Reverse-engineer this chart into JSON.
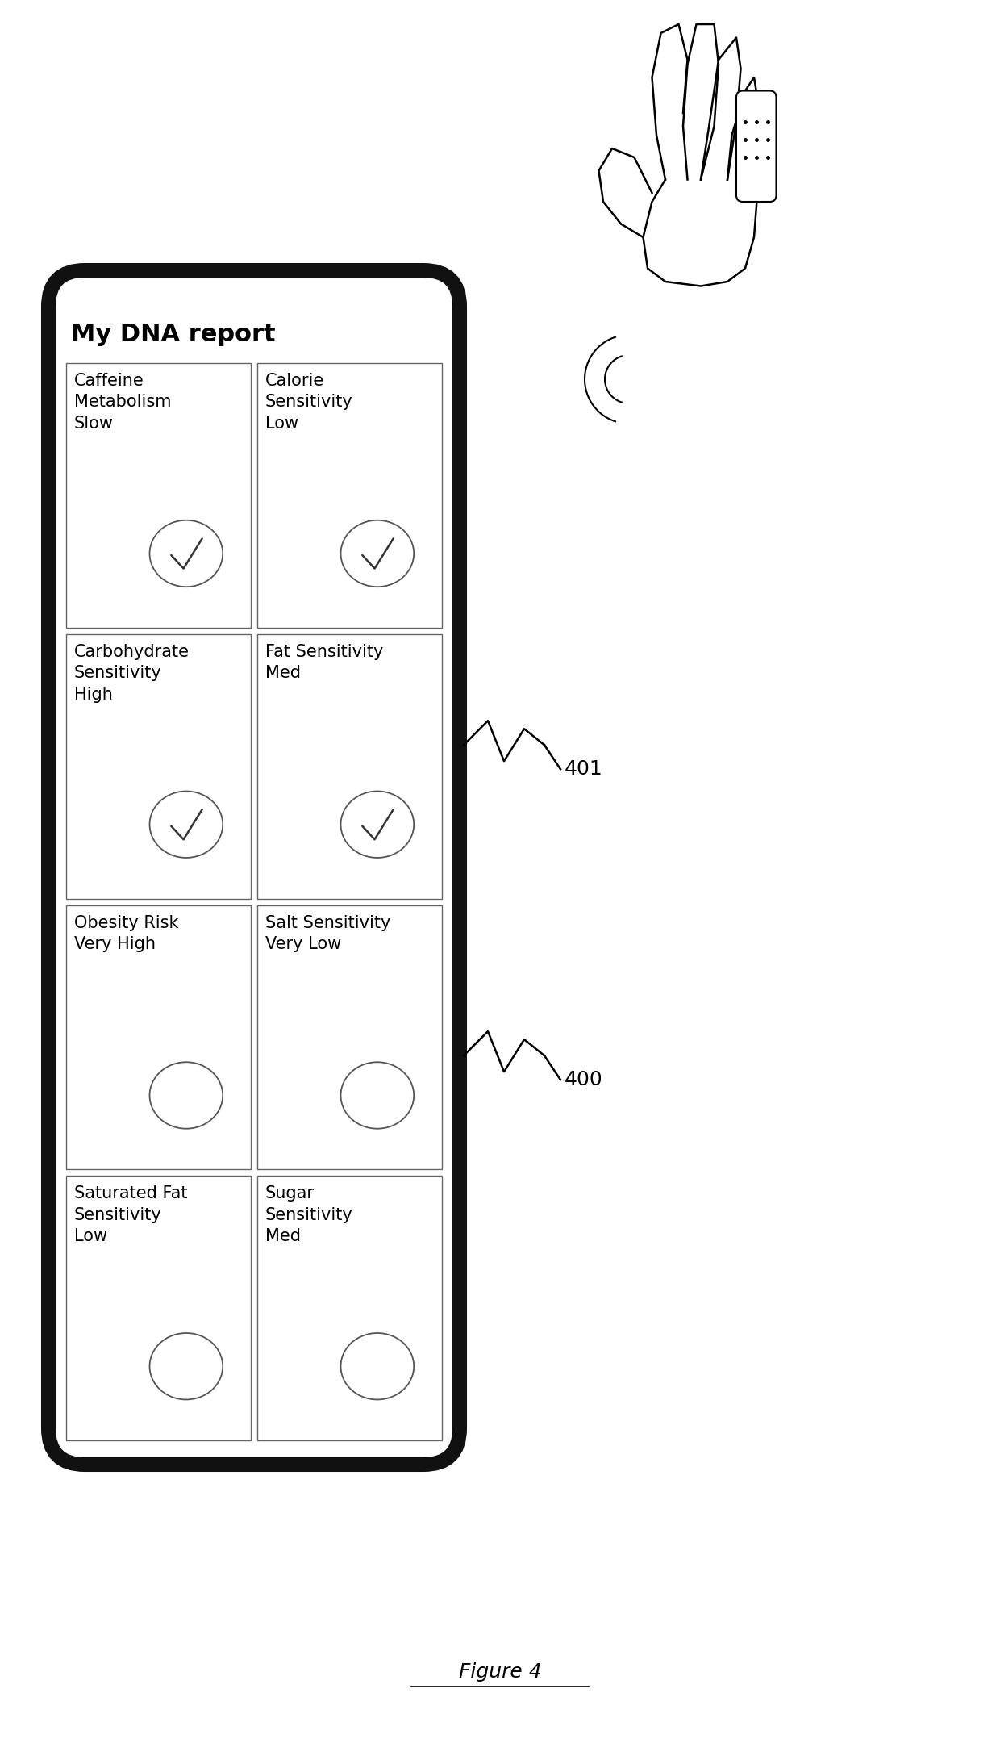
{
  "title": "My DNA report",
  "figure_label": "Figure 4",
  "ref_401": "401",
  "ref_400": "400",
  "bg_color": "#ffffff",
  "phone_bg": "#ffffff",
  "phone_border": "#111111",
  "cells": [
    {
      "row": 0,
      "col": 0,
      "label": "Caffeine\nMetabolism\nSlow",
      "checked": true
    },
    {
      "row": 0,
      "col": 1,
      "label": "Calorie\nSensitivity\nLow",
      "checked": true
    },
    {
      "row": 1,
      "col": 0,
      "label": "Carbohydrate\nSensitivity\nHigh",
      "checked": true
    },
    {
      "row": 1,
      "col": 1,
      "label": "Fat Sensitivity\nMed",
      "checked": true
    },
    {
      "row": 2,
      "col": 0,
      "label": "Obesity Risk\nVery High",
      "checked": false
    },
    {
      "row": 2,
      "col": 1,
      "label": "Salt Sensitivity\nVery Low",
      "checked": false
    },
    {
      "row": 3,
      "col": 0,
      "label": "Saturated Fat\nSensitivity\nLow",
      "checked": false
    },
    {
      "row": 3,
      "col": 1,
      "label": "Sugar\nSensitivity\nMed",
      "checked": false
    }
  ]
}
